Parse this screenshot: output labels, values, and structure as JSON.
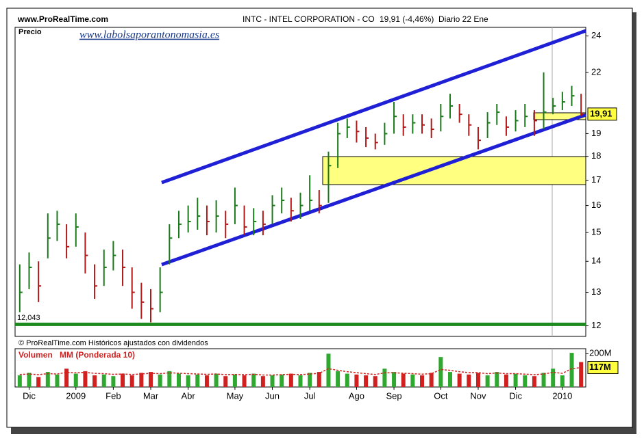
{
  "header": {
    "site": "www.ProRealTime.com",
    "instrument": "INTC - INTEL CORPORATION - CO",
    "quote": "19,91 (-4,46%)",
    "period": "Diario  22 Ene",
    "watermark": "www.labolsaporantonomasia.es",
    "footer": "© ProRealTime.com Históricos ajustados con dividendos"
  },
  "chart_data": [
    {
      "type": "ohlc",
      "title": "Precio",
      "categories": [
        null,
        "Dic",
        null,
        null,
        null,
        null,
        "2009",
        null,
        null,
        null,
        "Feb",
        null,
        null,
        null,
        "Mar",
        null,
        null,
        null,
        "Abr",
        null,
        null,
        null,
        null,
        "May",
        null,
        null,
        null,
        "Jun",
        null,
        null,
        null,
        "Jul",
        null,
        null,
        null,
        null,
        "Ago",
        null,
        null,
        null,
        "Sep",
        null,
        null,
        null,
        null,
        "Oct",
        null,
        null,
        null,
        "Nov",
        null,
        null,
        null,
        "Dic",
        null,
        null,
        null,
        null,
        "2010",
        null,
        null
      ],
      "high": [
        13.9,
        14.3,
        14.0,
        15.7,
        15.8,
        15.3,
        15.7,
        15.0,
        13.9,
        14.4,
        14.7,
        14.4,
        13.8,
        13.3,
        13.1,
        13.8,
        15.3,
        15.8,
        16.0,
        16.3,
        16.0,
        16.2,
        15.8,
        16.7,
        16.0,
        15.9,
        15.8,
        16.4,
        16.7,
        16.3,
        16.5,
        17.2,
        16.6,
        18.2,
        19.5,
        19.7,
        19.6,
        19.3,
        19.0,
        19.5,
        20.5,
        19.9,
        19.9,
        19.9,
        19.7,
        20.4,
        20.9,
        20.4,
        19.9,
        19.3,
        20.0,
        20.4,
        19.8,
        20.1,
        20.4,
        20.1,
        22.0,
        20.7,
        21.0,
        21.3,
        20.9
      ],
      "low": [
        12.4,
        13.1,
        12.7,
        14.1,
        14.7,
        14.1,
        14.5,
        13.6,
        12.8,
        13.2,
        13.7,
        13.2,
        12.5,
        12.2,
        12.1,
        12.4,
        13.9,
        14.8,
        15.0,
        15.1,
        14.9,
        15.0,
        14.8,
        15.3,
        14.9,
        14.9,
        14.9,
        15.3,
        15.7,
        15.4,
        15.5,
        15.8,
        15.7,
        16.1,
        17.5,
        18.8,
        18.6,
        18.4,
        18.3,
        18.5,
        19.0,
        18.9,
        19.0,
        19.0,
        18.8,
        19.1,
        19.7,
        19.5,
        18.9,
        18.3,
        18.8,
        19.4,
        18.9,
        19.1,
        19.3,
        18.9,
        19.2,
        19.9,
        20.1,
        20.3,
        19.8
      ],
      "close": [
        13.0,
        13.8,
        13.2,
        14.8,
        15.3,
        14.5,
        15.2,
        14.2,
        13.2,
        13.8,
        14.2,
        13.8,
        13.0,
        12.7,
        12.5,
        13.0,
        14.8,
        15.3,
        15.4,
        15.6,
        15.4,
        15.6,
        15.3,
        16.0,
        15.2,
        15.4,
        15.3,
        16.0,
        16.2,
        15.8,
        16.0,
        16.2,
        16.0,
        17.6,
        19.0,
        19.3,
        19.1,
        18.8,
        18.6,
        19.0,
        19.8,
        19.3,
        19.5,
        19.4,
        19.2,
        19.8,
        20.3,
        19.9,
        19.4,
        18.7,
        19.5,
        20.0,
        19.3,
        19.6,
        19.8,
        19.6,
        20.0,
        20.3,
        20.5,
        20.8,
        19.91
      ],
      "value_labels": [
        null,
        null,
        null,
        null,
        null,
        null,
        null,
        null,
        null,
        null,
        null,
        null,
        null,
        null,
        null,
        null,
        null,
        null,
        null,
        null,
        null,
        null,
        null,
        null,
        null,
        null,
        null,
        null,
        null,
        null,
        null,
        null,
        null,
        null,
        null,
        null,
        null,
        null,
        null,
        null,
        null,
        null,
        null,
        null,
        null,
        null,
        null,
        null,
        null,
        null,
        null,
        null,
        null,
        null,
        null,
        null,
        null,
        null,
        null,
        null,
        "19,91"
      ],
      "up_color": "#1a7a1a",
      "down_color": "#b01818",
      "log_scale": true,
      "ylim": [
        11.7,
        24.5
      ],
      "yticks": [
        12,
        13,
        14,
        15,
        16,
        17,
        18,
        19,
        22,
        24
      ],
      "support": {
        "value": 12.043,
        "label": "12,043"
      },
      "support_color": "#1c8a1c",
      "channel_color": "#1f1fd6"
    },
    {
      "type": "bar",
      "title": "Volumen",
      "series": [
        {
          "name": "Volumen",
          "up_color": "#2ea82e",
          "down_color": "#d02020",
          "values": [
            70,
            85,
            60,
            90,
            75,
            110,
            80,
            95,
            70,
            75,
            65,
            80,
            70,
            85,
            90,
            75,
            95,
            80,
            70,
            75,
            70,
            80,
            65,
            75,
            70,
            80,
            65,
            70,
            75,
            80,
            70,
            85,
            90,
            200,
            95,
            80,
            75,
            70,
            65,
            110,
            90,
            80,
            75,
            70,
            85,
            180,
            90,
            80,
            75,
            85,
            70,
            90,
            75,
            80,
            70,
            65,
            85,
            110,
            70,
            205,
            150
          ]
        },
        {
          "name": "MM (Ponderada 10)",
          "color": "#d02020",
          "values": [
            75,
            78,
            74,
            80,
            78,
            88,
            85,
            88,
            82,
            80,
            76,
            78,
            75,
            78,
            82,
            80,
            85,
            83,
            80,
            78,
            76,
            78,
            74,
            75,
            74,
            76,
            72,
            72,
            74,
            76,
            74,
            78,
            82,
            110,
            100,
            92,
            86,
            80,
            75,
            85,
            85,
            83,
            80,
            77,
            80,
            105,
            100,
            92,
            86,
            86,
            80,
            84,
            80,
            80,
            77,
            74,
            78,
            88,
            82,
            110,
            117
          ],
          "value_labels": [
            null,
            null,
            null,
            null,
            null,
            null,
            null,
            null,
            null,
            null,
            null,
            null,
            null,
            null,
            null,
            null,
            null,
            null,
            null,
            null,
            null,
            null,
            null,
            null,
            null,
            null,
            null,
            null,
            null,
            null,
            null,
            null,
            null,
            null,
            null,
            null,
            null,
            null,
            null,
            null,
            null,
            null,
            null,
            null,
            null,
            null,
            null,
            null,
            null,
            null,
            null,
            null,
            null,
            null,
            null,
            null,
            null,
            null,
            null,
            null,
            "117M"
          ]
        }
      ],
      "ylim": [
        0,
        230
      ],
      "yticks": [
        {
          "value": 200,
          "label": "200M"
        }
      ]
    }
  ]
}
